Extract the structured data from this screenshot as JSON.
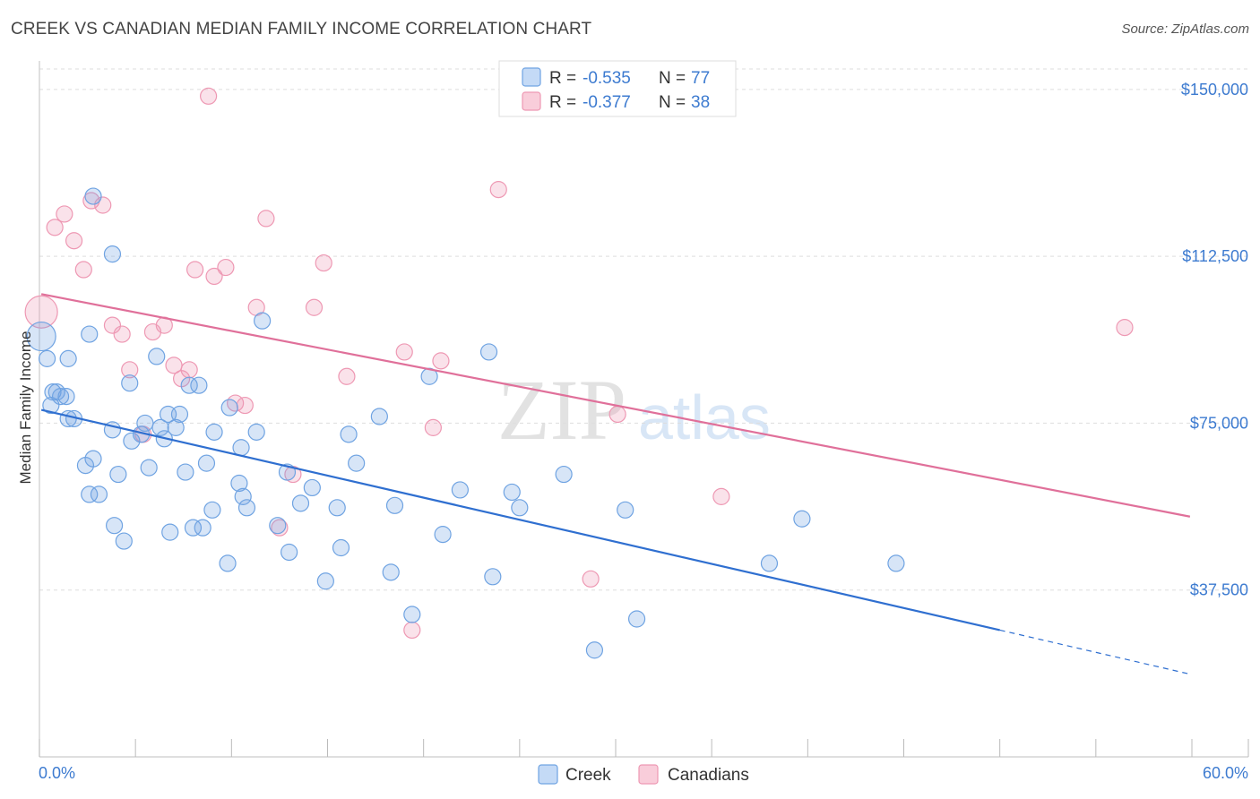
{
  "title": "CREEK VS CANADIAN MEDIAN FAMILY INCOME CORRELATION CHART",
  "source": "Source: ZipAtlas.com",
  "watermark": {
    "part1": "ZIP",
    "part2": "atlas"
  },
  "colors": {
    "creek": "#6fa3e2",
    "creek_line": "#2f6fd0",
    "canadians": "#ee98b3",
    "canadians_line": "#e0709a",
    "tick_text": "#3d7bd0"
  },
  "legend": {
    "rows": [
      {
        "r_label": "R = ",
        "r_value": "-0.535",
        "n_label": "N = ",
        "n_value": "77"
      },
      {
        "r_label": "R = ",
        "r_value": "-0.377",
        "n_label": "N = ",
        "n_value": "38"
      }
    ]
  },
  "chart_data": {
    "type": "scatter",
    "title": "CREEK VS CANADIAN MEDIAN FAMILY INCOME CORRELATION CHART",
    "xlabel": "",
    "ylabel": "Median Family Income",
    "xlim": [
      0,
      60
    ],
    "ylim": [
      0,
      155000
    ],
    "x_tick_labels": [
      "0.0%",
      "60.0%"
    ],
    "y_ticks": [
      37500,
      75000,
      112500,
      150000
    ],
    "y_tick_labels": [
      "$37,500",
      "$75,000",
      "$112,500",
      "$150,000"
    ],
    "grid": true,
    "legend_position": "top-center",
    "series": [
      {
        "name": "Creek",
        "r": -0.535,
        "n": 77,
        "trend": {
          "x0": 0.1,
          "y0": 78000,
          "x1": 50.0,
          "y1": 28500,
          "dashed_to_x": 59.9,
          "dashed_to_y": 18600
        },
        "points": [
          [
            0.1,
            94500,
            16
          ],
          [
            0.4,
            89500,
            9
          ],
          [
            0.7,
            82000,
            9
          ],
          [
            0.6,
            79000,
            9
          ],
          [
            0.9,
            82000,
            9
          ],
          [
            1.1,
            81000,
            9
          ],
          [
            1.4,
            81000,
            9
          ],
          [
            1.5,
            76000,
            9
          ],
          [
            1.8,
            76000,
            9
          ],
          [
            1.5,
            89500,
            9
          ],
          [
            2.8,
            126000,
            9
          ],
          [
            2.8,
            67000,
            9
          ],
          [
            2.6,
            95000,
            9
          ],
          [
            3.8,
            113000,
            9
          ],
          [
            2.4,
            65500,
            9
          ],
          [
            2.6,
            59000,
            9
          ],
          [
            3.1,
            59000,
            9
          ],
          [
            3.8,
            73500,
            9
          ],
          [
            4.1,
            63500,
            9
          ],
          [
            3.9,
            52000,
            9
          ],
          [
            4.4,
            48500,
            9
          ],
          [
            4.7,
            84000,
            9
          ],
          [
            4.8,
            71000,
            9
          ],
          [
            5.3,
            72500,
            9
          ],
          [
            5.5,
            75000,
            9
          ],
          [
            5.7,
            65000,
            9
          ],
          [
            6.1,
            90000,
            9
          ],
          [
            6.3,
            74000,
            9
          ],
          [
            6.5,
            71500,
            9
          ],
          [
            6.7,
            77000,
            9
          ],
          [
            6.8,
            50500,
            9
          ],
          [
            7.1,
            74000,
            9
          ],
          [
            7.3,
            77000,
            9
          ],
          [
            7.6,
            64000,
            9
          ],
          [
            7.8,
            83500,
            9
          ],
          [
            8.0,
            51500,
            9
          ],
          [
            8.3,
            83500,
            9
          ],
          [
            8.5,
            51500,
            9
          ],
          [
            8.7,
            66000,
            9
          ],
          [
            9.0,
            55500,
            9
          ],
          [
            9.1,
            73000,
            9
          ],
          [
            9.9,
            78500,
            9
          ],
          [
            9.8,
            43500,
            9
          ],
          [
            10.4,
            61500,
            9
          ],
          [
            10.6,
            58500,
            9
          ],
          [
            10.5,
            69500,
            9
          ],
          [
            10.8,
            56000,
            9
          ],
          [
            11.3,
            73000,
            9
          ],
          [
            11.6,
            98000,
            9
          ],
          [
            12.4,
            52000,
            9
          ],
          [
            12.9,
            64000,
            9
          ],
          [
            13.0,
            46000,
            9
          ],
          [
            13.6,
            57000,
            9
          ],
          [
            14.2,
            60500,
            9
          ],
          [
            14.9,
            39500,
            9
          ],
          [
            15.5,
            56000,
            9
          ],
          [
            15.7,
            47000,
            9
          ],
          [
            16.1,
            72500,
            9
          ],
          [
            16.5,
            66000,
            9
          ],
          [
            17.7,
            76500,
            9
          ],
          [
            18.3,
            41500,
            9
          ],
          [
            18.5,
            56500,
            9
          ],
          [
            19.4,
            32000,
            9
          ],
          [
            20.3,
            85500,
            9
          ],
          [
            21.0,
            50000,
            9
          ],
          [
            21.9,
            60000,
            9
          ],
          [
            23.4,
            91000,
            9
          ],
          [
            23.6,
            40500,
            9
          ],
          [
            24.6,
            59500,
            9
          ],
          [
            25.0,
            56000,
            9
          ],
          [
            27.3,
            63500,
            9
          ],
          [
            28.9,
            24000,
            9
          ],
          [
            30.5,
            55500,
            9
          ],
          [
            31.1,
            31000,
            9
          ],
          [
            38.0,
            43500,
            9
          ],
          [
            39.7,
            53500,
            9
          ],
          [
            44.6,
            43500,
            9
          ]
        ]
      },
      {
        "name": "Canadians",
        "r": -0.377,
        "n": 38,
        "trend": {
          "x0": 0.1,
          "y0": 104000,
          "x1": 59.9,
          "y1": 54000
        },
        "points": [
          [
            0.1,
            100000,
            18
          ],
          [
            0.8,
            119000,
            9
          ],
          [
            1.3,
            122000,
            9
          ],
          [
            1.8,
            116000,
            9
          ],
          [
            2.3,
            109500,
            9
          ],
          [
            2.7,
            125000,
            9
          ],
          [
            3.3,
            124000,
            9
          ],
          [
            3.8,
            97000,
            9
          ],
          [
            4.3,
            95000,
            9
          ],
          [
            4.7,
            87000,
            9
          ],
          [
            5.4,
            72500,
            9
          ],
          [
            5.9,
            95500,
            9
          ],
          [
            6.5,
            97000,
            9
          ],
          [
            7.0,
            88000,
            9
          ],
          [
            7.4,
            85000,
            9
          ],
          [
            7.8,
            87000,
            9
          ],
          [
            8.1,
            109500,
            9
          ],
          [
            8.8,
            148500,
            9
          ],
          [
            9.1,
            108000,
            9
          ],
          [
            9.7,
            110000,
            9
          ],
          [
            10.2,
            79500,
            9
          ],
          [
            10.7,
            79000,
            9
          ],
          [
            11.3,
            101000,
            9
          ],
          [
            11.8,
            121000,
            9
          ],
          [
            12.5,
            51500,
            9
          ],
          [
            13.2,
            63500,
            9
          ],
          [
            14.3,
            101000,
            9
          ],
          [
            14.8,
            111000,
            9
          ],
          [
            16.0,
            85500,
            9
          ],
          [
            19.0,
            91000,
            9
          ],
          [
            19.4,
            28500,
            9
          ],
          [
            20.5,
            74000,
            9
          ],
          [
            20.9,
            89000,
            9
          ],
          [
            23.9,
            127500,
            9
          ],
          [
            28.7,
            40000,
            9
          ],
          [
            30.1,
            77000,
            9
          ],
          [
            35.5,
            58500,
            9
          ],
          [
            56.5,
            96500,
            9
          ]
        ]
      }
    ]
  }
}
